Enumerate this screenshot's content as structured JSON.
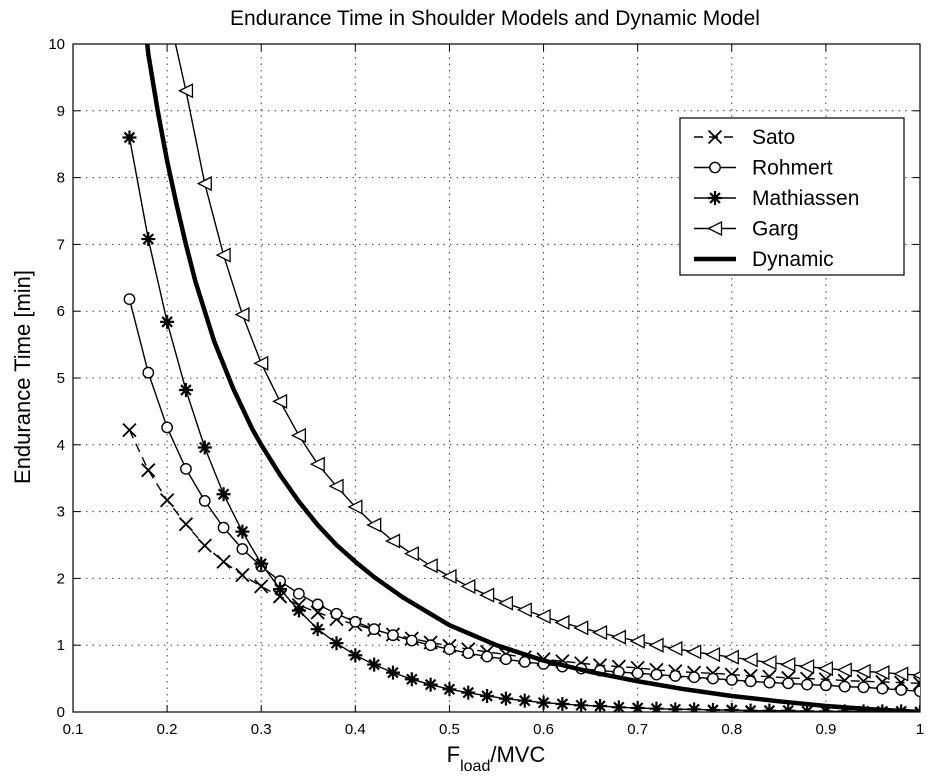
{
  "chart_data": {
    "type": "line",
    "title": "Endurance Time in Shoulder Models and Dynamic Model",
    "xlabel": {
      "main": "F",
      "sub": "load",
      "rest": "/MVC"
    },
    "ylabel": "Endurance Time [min]",
    "xlim": [
      0.1,
      1.0
    ],
    "ylim": [
      0,
      10
    ],
    "xticks": [
      0.1,
      0.2,
      0.3,
      0.4,
      0.5,
      0.6,
      0.7,
      0.8,
      0.9,
      1.0
    ],
    "xtick_labels": [
      "0.1",
      "0.2",
      "0.3",
      "0.4",
      "0.5",
      "0.6",
      "0.7",
      "0.8",
      "0.9",
      "1"
    ],
    "yticks": [
      0,
      1,
      2,
      3,
      4,
      5,
      6,
      7,
      8,
      9,
      10
    ],
    "ytick_labels": [
      "0",
      "1",
      "2",
      "3",
      "4",
      "5",
      "6",
      "7",
      "8",
      "9",
      "10"
    ],
    "grid": true,
    "legend_position": "top-right",
    "series": [
      {
        "name": "Sato",
        "marker": "x",
        "dash": true,
        "line_width": 1.4,
        "color": "#000000",
        "x": [
          0.16,
          0.18,
          0.2,
          0.22,
          0.24,
          0.26,
          0.28,
          0.3,
          0.32,
          0.34,
          0.36,
          0.38,
          0.4,
          0.42,
          0.44,
          0.46,
          0.48,
          0.5,
          0.52,
          0.54,
          0.56,
          0.58,
          0.6,
          0.62,
          0.64,
          0.66,
          0.68,
          0.7,
          0.72,
          0.74,
          0.76,
          0.78,
          0.8,
          0.82,
          0.84,
          0.86,
          0.88,
          0.9,
          0.92,
          0.94,
          0.96,
          0.98,
          1.0
        ],
        "y": [
          4.22,
          3.62,
          3.17,
          2.81,
          2.49,
          2.25,
          2.05,
          1.88,
          1.73,
          1.6,
          1.49,
          1.39,
          1.31,
          1.23,
          1.16,
          1.1,
          1.04,
          0.99,
          0.94,
          0.9,
          0.86,
          0.82,
          0.79,
          0.76,
          0.73,
          0.7,
          0.68,
          0.66,
          0.63,
          0.61,
          0.59,
          0.58,
          0.56,
          0.54,
          0.53,
          0.51,
          0.5,
          0.49,
          0.47,
          0.46,
          0.45,
          0.44,
          0.43
        ]
      },
      {
        "name": "Rohmert",
        "marker": "o",
        "dash": false,
        "line_width": 1.4,
        "color": "#000000",
        "x": [
          0.16,
          0.18,
          0.2,
          0.22,
          0.24,
          0.26,
          0.28,
          0.3,
          0.32,
          0.34,
          0.36,
          0.38,
          0.4,
          0.42,
          0.44,
          0.46,
          0.48,
          0.5,
          0.52,
          0.54,
          0.56,
          0.58,
          0.6,
          0.62,
          0.64,
          0.66,
          0.68,
          0.7,
          0.72,
          0.74,
          0.76,
          0.78,
          0.8,
          0.82,
          0.84,
          0.86,
          0.88,
          0.9,
          0.92,
          0.94,
          0.96,
          0.98,
          1.0
        ],
        "y": [
          6.18,
          5.08,
          4.26,
          3.64,
          3.16,
          2.76,
          2.44,
          2.18,
          1.96,
          1.77,
          1.61,
          1.47,
          1.35,
          1.24,
          1.15,
          1.07,
          1.0,
          0.94,
          0.88,
          0.83,
          0.79,
          0.75,
          0.72,
          0.68,
          0.65,
          0.62,
          0.6,
          0.58,
          0.56,
          0.54,
          0.52,
          0.5,
          0.48,
          0.46,
          0.44,
          0.43,
          0.41,
          0.4,
          0.38,
          0.37,
          0.35,
          0.33,
          0.31
        ]
      },
      {
        "name": "Mathiassen",
        "marker": "*",
        "dash": false,
        "line_width": 1.4,
        "color": "#000000",
        "x": [
          0.16,
          0.18,
          0.2,
          0.22,
          0.24,
          0.26,
          0.28,
          0.3,
          0.32,
          0.34,
          0.36,
          0.38,
          0.4,
          0.42,
          0.44,
          0.46,
          0.48,
          0.5,
          0.52,
          0.54,
          0.56,
          0.58,
          0.6,
          0.62,
          0.64,
          0.66,
          0.68,
          0.7,
          0.72,
          0.74,
          0.76,
          0.78,
          0.8,
          0.82,
          0.84,
          0.86,
          0.88,
          0.9,
          0.92,
          0.94,
          0.96,
          0.98,
          1.0
        ],
        "y": [
          8.6,
          7.08,
          5.84,
          4.82,
          3.96,
          3.26,
          2.7,
          2.22,
          1.84,
          1.52,
          1.24,
          1.03,
          0.85,
          0.71,
          0.59,
          0.49,
          0.41,
          0.34,
          0.29,
          0.24,
          0.2,
          0.17,
          0.14,
          0.12,
          0.1,
          0.09,
          0.07,
          0.06,
          0.05,
          0.04,
          0.04,
          0.03,
          0.03,
          0.02,
          0.02,
          0.02,
          0.01,
          0.01,
          0.01,
          0.01,
          0.01,
          0.01,
          0.0
        ]
      },
      {
        "name": "Garg",
        "marker": "<",
        "dash": false,
        "line_width": 1.4,
        "color": "#000000",
        "x": [
          0.22,
          0.24,
          0.26,
          0.28,
          0.3,
          0.32,
          0.34,
          0.36,
          0.38,
          0.4,
          0.42,
          0.44,
          0.46,
          0.48,
          0.5,
          0.52,
          0.54,
          0.56,
          0.58,
          0.6,
          0.62,
          0.64,
          0.66,
          0.68,
          0.7,
          0.72,
          0.74,
          0.76,
          0.78,
          0.8,
          0.82,
          0.84,
          0.86,
          0.88,
          0.9,
          0.92,
          0.94,
          0.96,
          0.98,
          1.0
        ],
        "y": [
          9.3,
          7.91,
          6.84,
          5.95,
          5.22,
          4.65,
          4.14,
          3.71,
          3.38,
          3.07,
          2.8,
          2.56,
          2.37,
          2.19,
          2.03,
          1.88,
          1.75,
          1.63,
          1.53,
          1.43,
          1.34,
          1.26,
          1.19,
          1.12,
          1.06,
          1.0,
          0.95,
          0.9,
          0.86,
          0.82,
          0.78,
          0.74,
          0.71,
          0.68,
          0.65,
          0.63,
          0.61,
          0.59,
          0.57,
          0.55
        ]
      },
      {
        "name": "Dynamic",
        "marker": "none",
        "dash": false,
        "line_width": 4.5,
        "color": "#000000",
        "x": [
          0.18,
          0.19,
          0.2,
          0.21,
          0.22,
          0.23,
          0.24,
          0.25,
          0.26,
          0.27,
          0.28,
          0.29,
          0.3,
          0.32,
          0.34,
          0.36,
          0.38,
          0.4,
          0.42,
          0.45,
          0.5,
          0.55,
          0.6,
          0.65,
          0.7,
          0.75,
          0.8,
          0.85,
          0.9,
          0.95,
          1.0
        ],
        "y": [
          9.85,
          9.0,
          8.25,
          7.6,
          7.0,
          6.45,
          6.0,
          5.55,
          5.2,
          4.85,
          4.55,
          4.25,
          4.0,
          3.55,
          3.15,
          2.8,
          2.5,
          2.25,
          2.02,
          1.72,
          1.3,
          1.0,
          0.77,
          0.6,
          0.46,
          0.34,
          0.24,
          0.16,
          0.09,
          0.04,
          0.0
        ]
      }
    ]
  }
}
